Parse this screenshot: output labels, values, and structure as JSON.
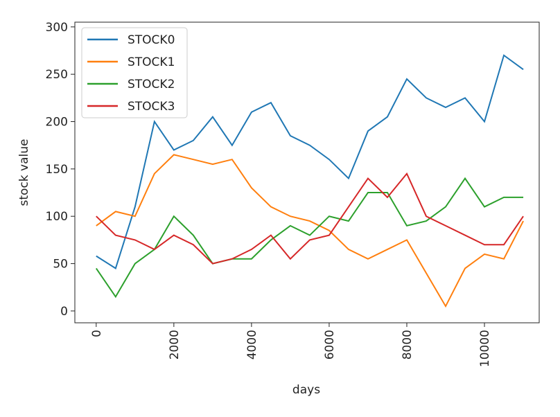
{
  "chart_data": {
    "type": "line",
    "x_label": "days",
    "y_label": "stock value",
    "x": [
      0,
      500,
      1000,
      1500,
      2000,
      2500,
      3000,
      3500,
      4000,
      4500,
      5000,
      5500,
      6000,
      6500,
      7000,
      7500,
      8000,
      8500,
      9000,
      9500,
      10000,
      10500,
      11000
    ],
    "series": [
      {
        "name": "STOCK0",
        "color": "#1f77b4",
        "values": [
          58,
          45,
          110,
          200,
          170,
          180,
          205,
          175,
          210,
          220,
          185,
          175,
          160,
          140,
          190,
          205,
          245,
          225,
          215,
          225,
          200,
          270,
          255
        ]
      },
      {
        "name": "STOCK1",
        "color": "#ff7f0e",
        "values": [
          90,
          105,
          100,
          145,
          165,
          160,
          155,
          160,
          130,
          110,
          100,
          95,
          85,
          65,
          55,
          65,
          75,
          40,
          5,
          45,
          60,
          55,
          95
        ]
      },
      {
        "name": "STOCK2",
        "color": "#2ca02c",
        "values": [
          45,
          15,
          50,
          65,
          100,
          80,
          50,
          55,
          55,
          75,
          90,
          80,
          100,
          95,
          125,
          125,
          90,
          95,
          110,
          140,
          110,
          120,
          120
        ]
      },
      {
        "name": "STOCK3",
        "color": "#d62728",
        "values": [
          100,
          80,
          75,
          65,
          80,
          70,
          50,
          55,
          65,
          80,
          55,
          75,
          80,
          110,
          140,
          120,
          145,
          100,
          90,
          80,
          70,
          70,
          100
        ]
      }
    ],
    "xlim": [
      -550,
      11410
    ],
    "xticks": [
      0,
      2000,
      4000,
      6000,
      8000,
      10000
    ],
    "ylim": [
      -12.5,
      305
    ],
    "yticks": [
      0,
      50,
      100,
      150,
      200,
      250,
      300
    ],
    "legend": "upper left"
  }
}
